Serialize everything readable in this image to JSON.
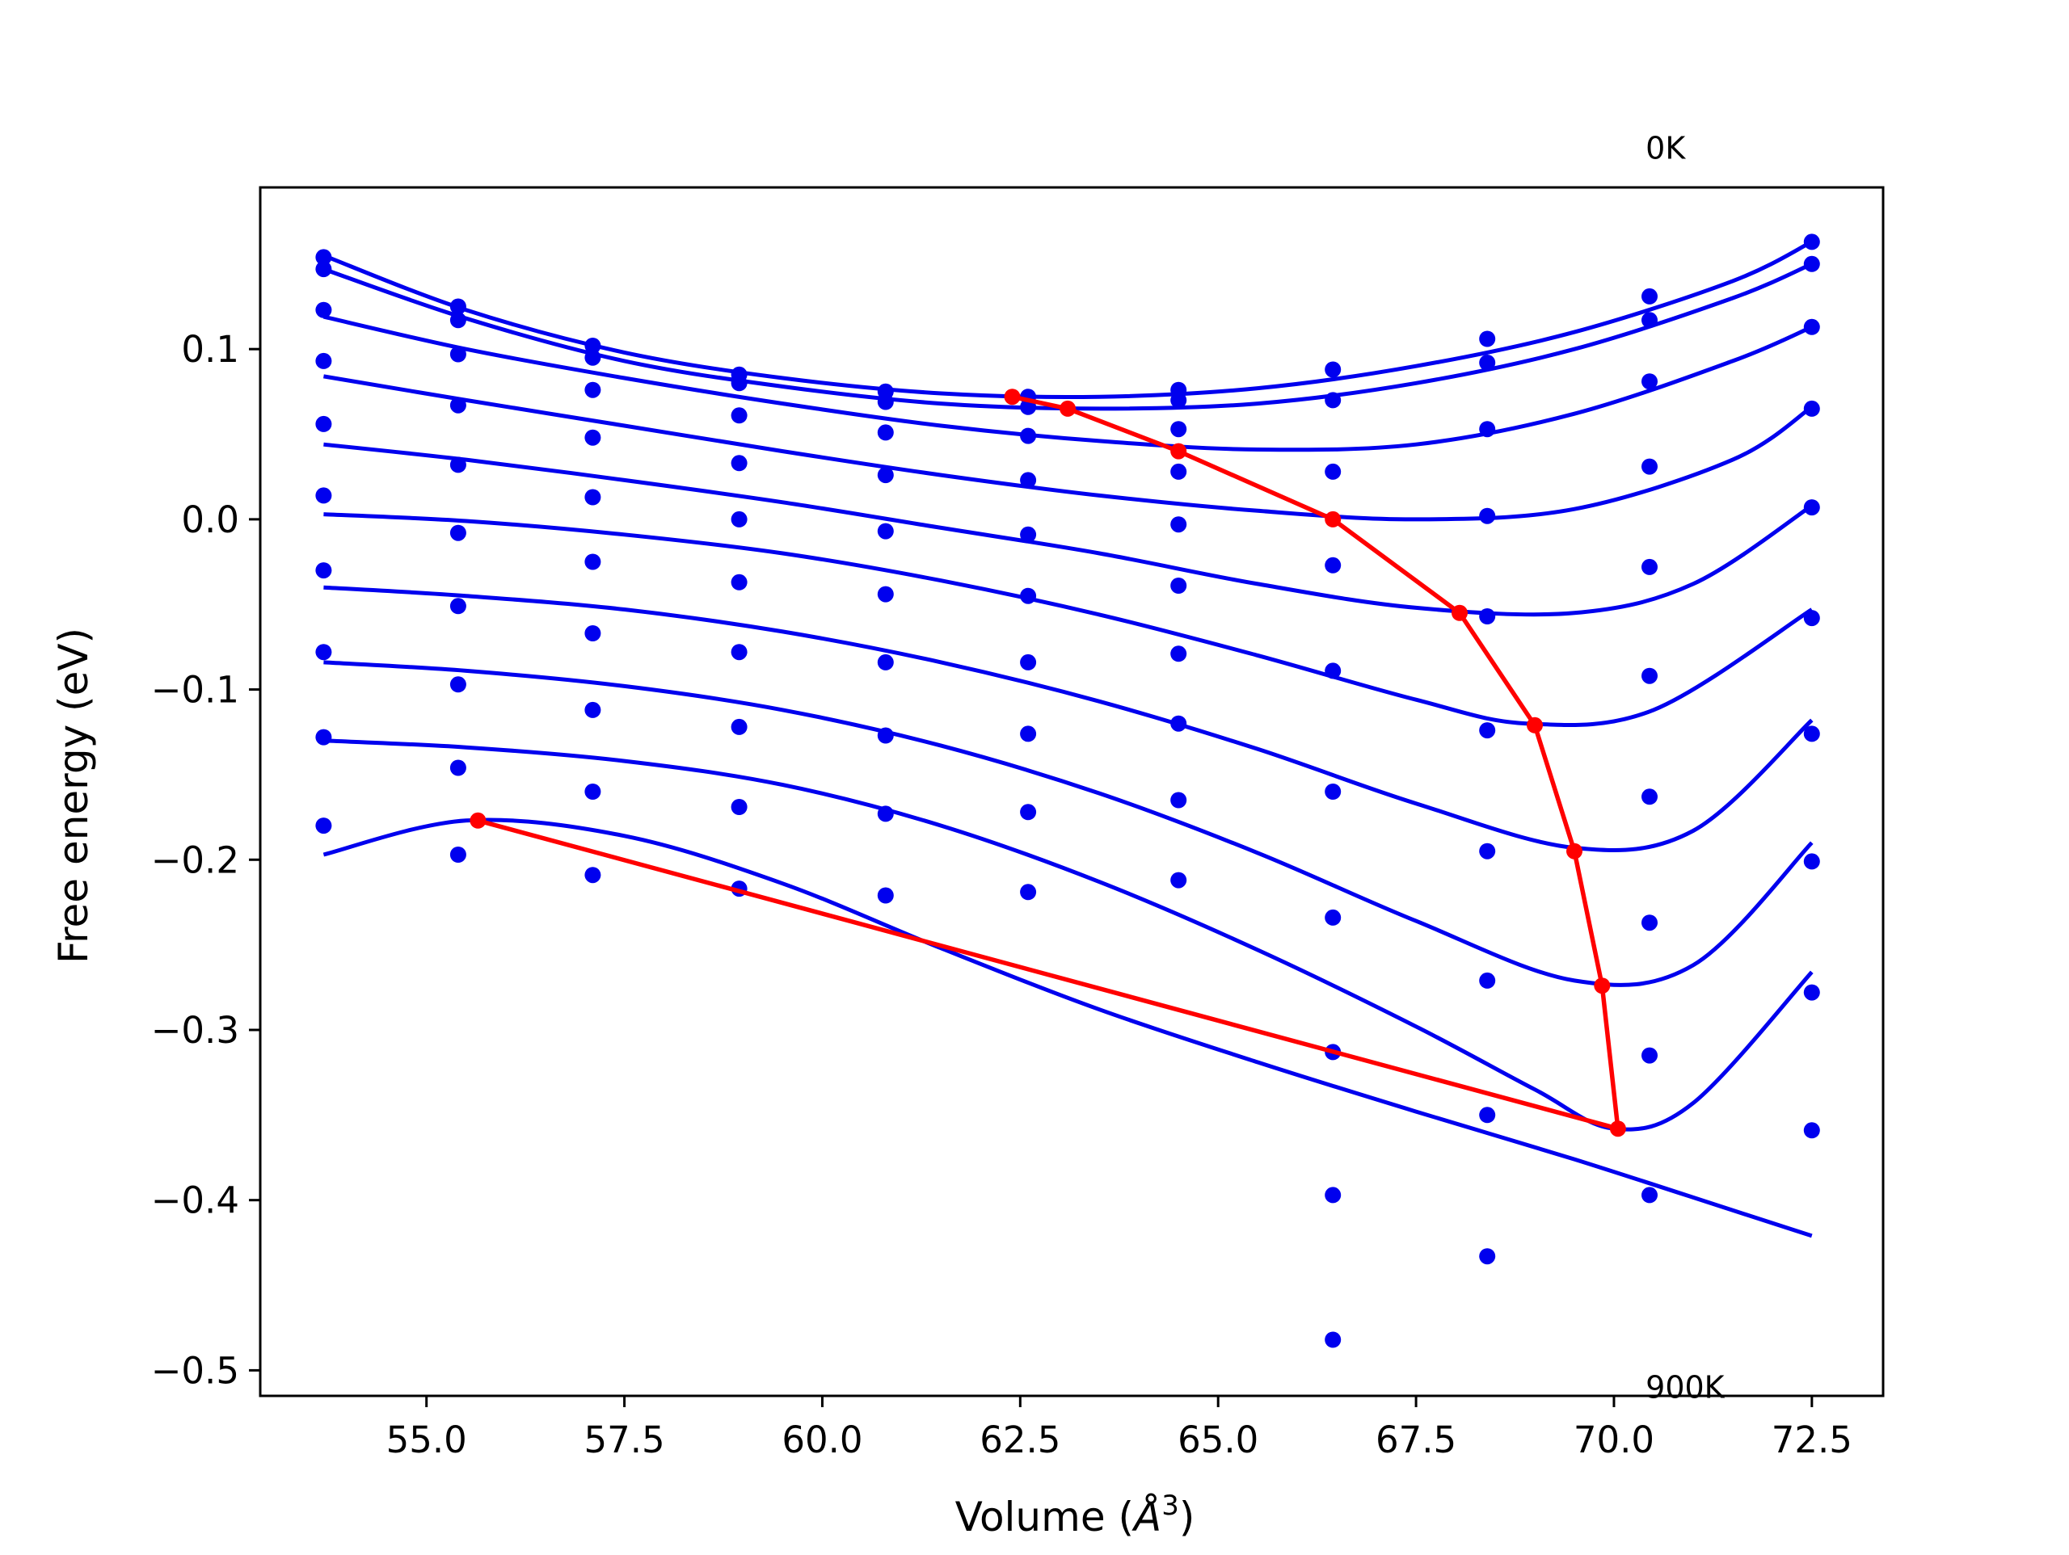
{
  "chart_data": {
    "type": "line",
    "title": "",
    "xlabel": "Volume (",
    "xlabel_unit": "Å",
    "xlabel_unit_exp": "3",
    "xlabel_close": ")",
    "ylabel": "Free energy (eV)",
    "xlim": [
      52.9,
      73.4
    ],
    "ylim": [
      -0.515,
      0.195
    ],
    "x_ticks": [
      55.0,
      57.5,
      60.0,
      62.5,
      65.0,
      67.5,
      70.0,
      72.5
    ],
    "x_tick_labels": [
      "55.0",
      "57.5",
      "60.0",
      "62.5",
      "65.0",
      "67.5",
      "70.0",
      "72.5"
    ],
    "y_ticks": [
      -0.5,
      -0.4,
      -0.3,
      -0.2,
      -0.1,
      0.0,
      0.1
    ],
    "y_tick_labels": [
      "−0.5",
      "−0.4",
      "−0.3",
      "−0.2",
      "−0.1",
      "0.0",
      "0.1"
    ],
    "grid": false,
    "annotations": [
      {
        "text": "0K",
        "x": 70.4,
        "y": 0.218
      },
      {
        "text": "900K",
        "x": 70.4,
        "y": -0.51
      }
    ],
    "colors": {
      "data": "#0000ee",
      "minimum": "#ff0000",
      "axes": "#000000"
    },
    "x_points": [
      53.7,
      55.4,
      57.1,
      58.95,
      60.8,
      62.6,
      64.5,
      66.45,
      68.4,
      70.45,
      72.5
    ],
    "data_points": [
      [
        0.154,
        0.125,
        0.102,
        0.085,
        0.075,
        0.072,
        0.076,
        0.088,
        0.106,
        0.131,
        0.163
      ],
      [
        0.147,
        0.117,
        0.095,
        0.08,
        0.069,
        0.066,
        0.07,
        0.07,
        0.092,
        0.117,
        0.15
      ],
      [
        0.123,
        0.097,
        0.076,
        0.061,
        0.051,
        0.049,
        0.053,
        0.028,
        0.053,
        0.081,
        0.113
      ],
      [
        0.093,
        0.067,
        0.048,
        0.033,
        0.026,
        0.023,
        0.028,
        -0.027,
        0.002,
        0.031,
        0.065
      ],
      [
        0.056,
        0.032,
        0.013,
        0.0,
        -0.007,
        -0.009,
        -0.003,
        -0.089,
        -0.057,
        -0.028,
        0.007
      ],
      [
        0.014,
        -0.008,
        -0.025,
        -0.037,
        -0.044,
        -0.045,
        -0.039,
        -0.16,
        -0.124,
        -0.092,
        -0.058
      ],
      [
        -0.03,
        -0.051,
        -0.067,
        -0.078,
        -0.084,
        -0.084,
        -0.079,
        -0.234,
        -0.195,
        -0.163,
        -0.126
      ],
      [
        -0.078,
        -0.097,
        -0.112,
        -0.122,
        -0.127,
        -0.126,
        -0.12,
        -0.313,
        -0.271,
        -0.237,
        -0.201
      ],
      [
        -0.128,
        -0.146,
        -0.16,
        -0.169,
        -0.173,
        -0.172,
        -0.165,
        -0.397,
        -0.35,
        -0.315,
        -0.278
      ],
      [
        -0.18,
        -0.197,
        -0.209,
        -0.217,
        -0.221,
        -0.219,
        -0.212,
        -0.482,
        -0.433,
        -0.397,
        -0.359
      ]
    ],
    "fit_curves": [
      {
        "x": [
          53.7,
          55.5,
          57.5,
          59.5,
          61.5,
          63.5,
          65.5,
          67.5,
          69.5,
          71.5,
          72.5
        ],
        "y": [
          0.155,
          0.123,
          0.098,
          0.083,
          0.074,
          0.072,
          0.077,
          0.09,
          0.11,
          0.14,
          0.163
        ]
      },
      {
        "x": [
          53.7,
          55.5,
          57.5,
          59.5,
          61.5,
          63.5,
          65.5,
          67.5,
          69.5,
          71.5,
          72.5
        ],
        "y": [
          0.147,
          0.118,
          0.093,
          0.078,
          0.068,
          0.065,
          0.068,
          0.08,
          0.1,
          0.13,
          0.15
        ]
      },
      {
        "x": [
          53.7,
          55.5,
          57.5,
          59.5,
          61.5,
          63.5,
          65.5,
          67.5,
          69.5,
          71.5,
          72.5
        ],
        "y": [
          0.119,
          0.1,
          0.083,
          0.068,
          0.055,
          0.046,
          0.041,
          0.044,
          0.062,
          0.093,
          0.113
        ]
      },
      {
        "x": [
          53.7,
          55.5,
          57.5,
          59.5,
          61.5,
          63.5,
          65.5,
          67.5,
          69.5,
          71.5,
          72.5
        ],
        "y": [
          0.084,
          0.07,
          0.055,
          0.04,
          0.026,
          0.014,
          0.005,
          0.0,
          0.006,
          0.035,
          0.066
        ]
      },
      {
        "x": [
          53.7,
          55.5,
          57.5,
          59.5,
          61.5,
          63.5,
          65.5,
          67.5,
          69.5,
          71.0,
          72.5
        ],
        "y": [
          0.044,
          0.035,
          0.023,
          0.01,
          -0.005,
          -0.02,
          -0.038,
          -0.052,
          -0.055,
          -0.038,
          0.008
        ]
      },
      {
        "x": [
          53.7,
          55.5,
          57.5,
          59.5,
          61.5,
          63.5,
          65.5,
          67.5,
          68.9,
          70.5,
          72.5
        ],
        "y": [
          0.003,
          -0.001,
          -0.009,
          -0.02,
          -0.036,
          -0.056,
          -0.08,
          -0.106,
          -0.12,
          -0.112,
          -0.053
        ]
      },
      {
        "x": [
          53.7,
          55.5,
          57.5,
          59.5,
          61.5,
          63.5,
          65.5,
          67.5,
          69.5,
          71.0,
          72.5
        ],
        "y": [
          -0.04,
          -0.045,
          -0.053,
          -0.066,
          -0.084,
          -0.107,
          -0.135,
          -0.167,
          -0.193,
          -0.183,
          -0.118
        ]
      },
      {
        "x": [
          53.7,
          55.5,
          57.5,
          59.5,
          61.5,
          63.5,
          65.5,
          67.5,
          69.5,
          71.0,
          72.5
        ],
        "y": [
          -0.084,
          -0.089,
          -0.098,
          -0.112,
          -0.133,
          -0.161,
          -0.196,
          -0.236,
          -0.271,
          -0.262,
          -0.19
        ]
      },
      {
        "x": [
          53.7,
          55.5,
          57.5,
          59.5,
          61.5,
          63.5,
          65.5,
          67.5,
          69.0,
          70.0,
          71.0,
          72.5
        ],
        "y": [
          -0.13,
          -0.134,
          -0.142,
          -0.156,
          -0.18,
          -0.213,
          -0.253,
          -0.298,
          -0.335,
          -0.358,
          -0.343,
          -0.266
        ]
      },
      {
        "x": [
          53.7,
          55.5,
          57.5,
          59.5,
          61.5,
          63.5,
          65.5,
          67.5,
          69.5,
          71.5,
          72.5
        ],
        "y": [
          -0.197,
          -0.177,
          -0.186,
          -0.214,
          -0.252,
          -0.288,
          -0.319,
          -0.348,
          -0.376,
          -0.406,
          -0.421
        ]
      }
    ],
    "minimum_path": {
      "x": [
        62.4,
        63.1,
        64.5,
        66.45,
        68.05,
        69.0,
        69.5,
        69.85,
        70.05,
        55.65
      ],
      "y": [
        0.072,
        0.065,
        0.04,
        0.0,
        -0.055,
        -0.121,
        -0.195,
        -0.274,
        -0.358,
        -0.177
      ]
    }
  }
}
